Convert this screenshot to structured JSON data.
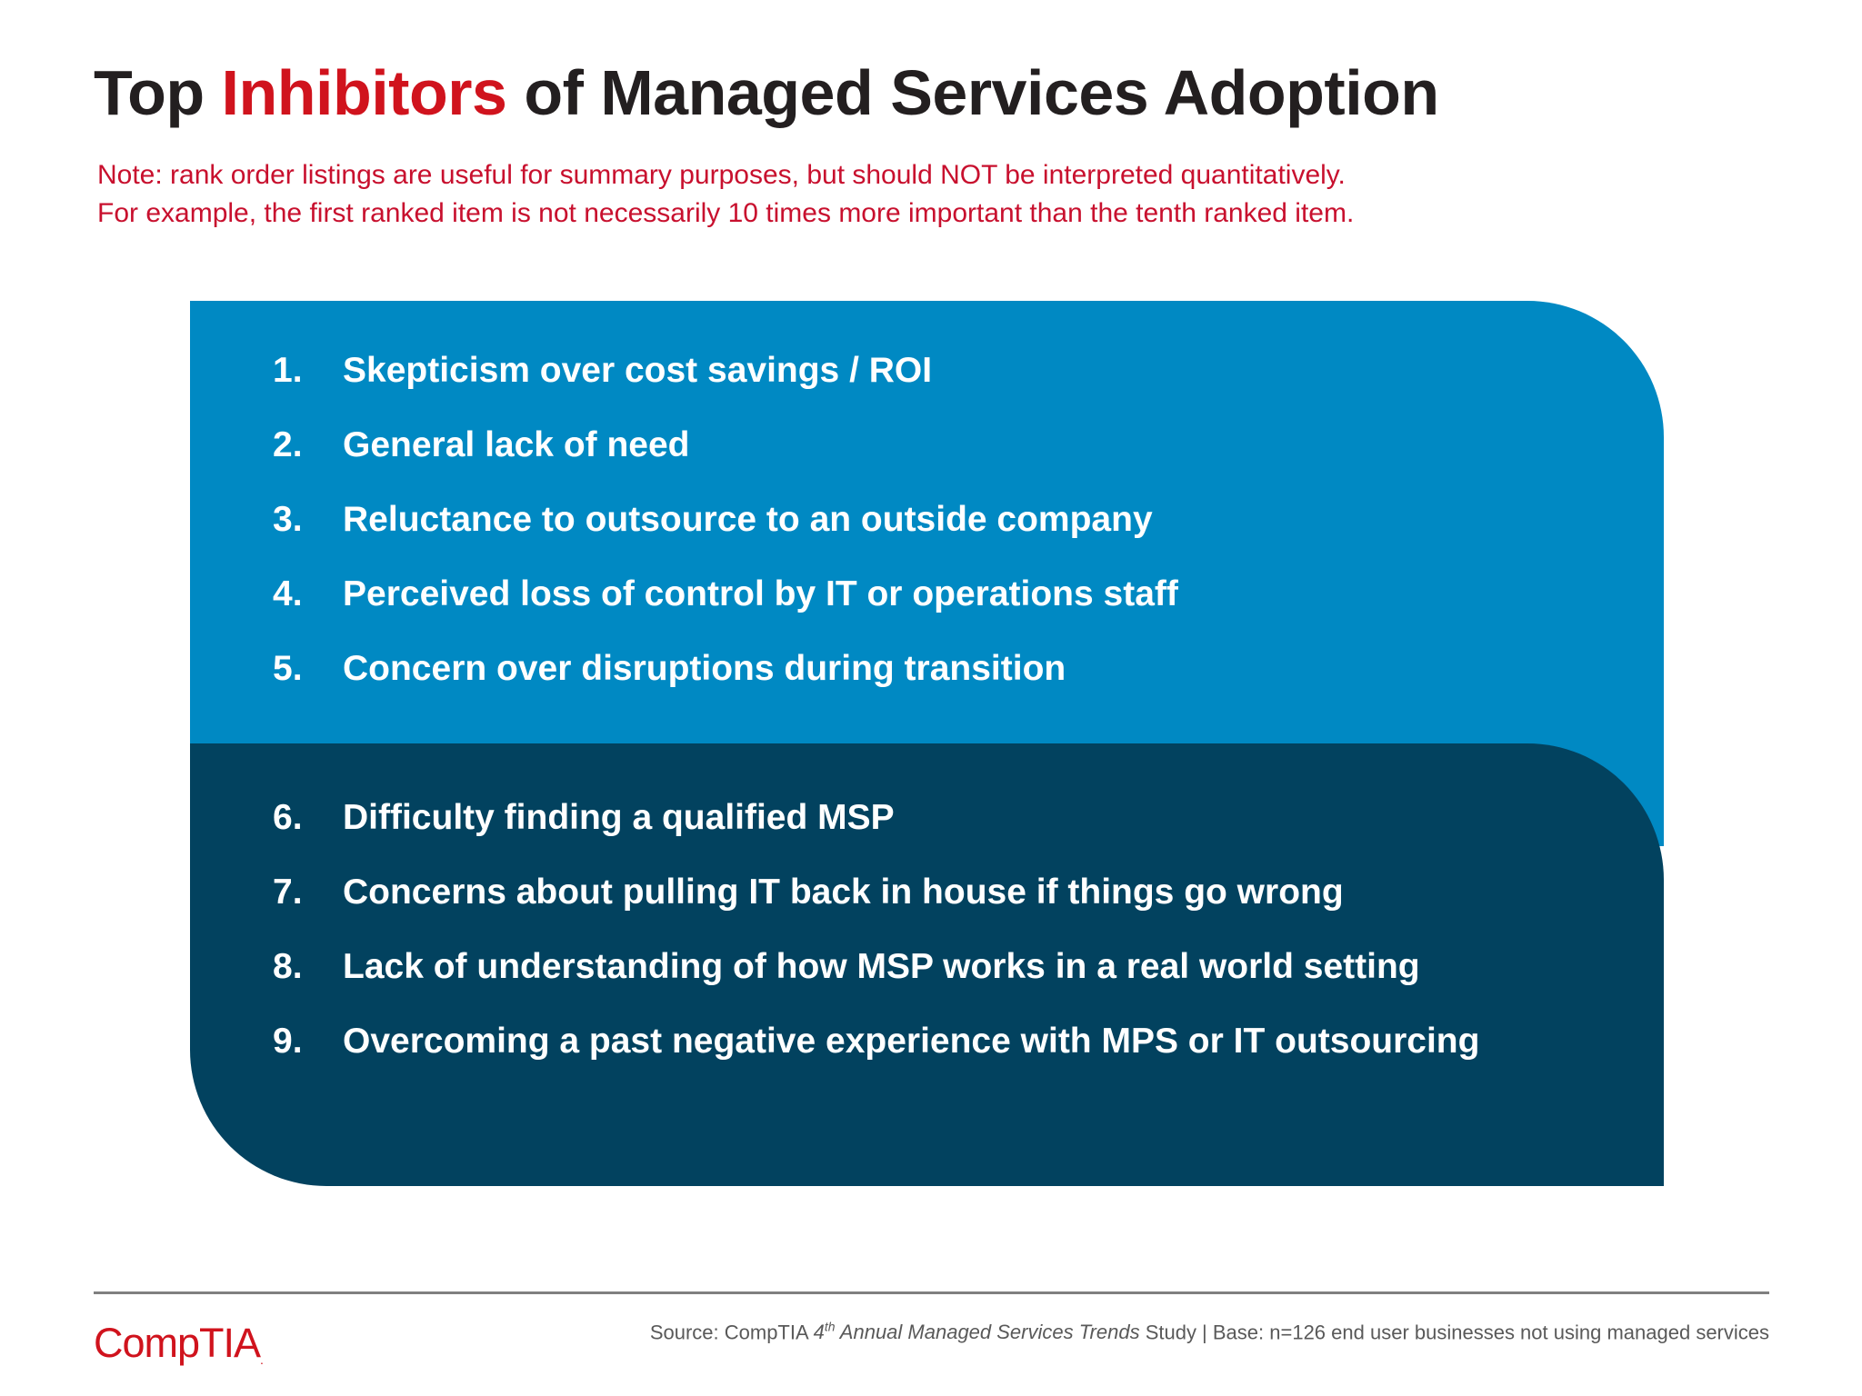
{
  "title": {
    "before": "Top ",
    "highlight": "Inhibitors",
    "after": " of Managed Services Adoption",
    "highlight_color": "#d0131d"
  },
  "note": {
    "line1": "Note: rank order listings are useful for summary purposes, but should NOT be interpreted quantitatively.",
    "line2": "For example, the first ranked item is not necessarily 10 times more important than the tenth ranked item.",
    "color": "#c8102e"
  },
  "panel": {
    "top_color": "#0089c3",
    "bottom_color": "#02425f",
    "top_items": [
      {
        "num": "1.",
        "text": "Skepticism over cost savings / ROI"
      },
      {
        "num": "2.",
        "text": "General lack of need"
      },
      {
        "num": "3.",
        "text": "Reluctance to outsource to an outside company"
      },
      {
        "num": "4.",
        "text": "Perceived loss of control by IT or operations staff"
      },
      {
        "num": "5.",
        "text": "Concern over disruptions during transition"
      }
    ],
    "bottom_items": [
      {
        "num": "6.",
        "text": "Difficulty finding a qualified MSP"
      },
      {
        "num": "7.",
        "text": "Concerns about pulling IT back in house if things go wrong"
      },
      {
        "num": "8.",
        "text": "Lack of understanding of how MSP works in a real world setting"
      },
      {
        "num": "9.",
        "text": "Overcoming a past negative experience with MPS or IT outsourcing"
      }
    ]
  },
  "footer": {
    "logo": "CompTIA",
    "logo_mark": ".",
    "source_prefix": "Source: CompTIA ",
    "source_ordinal": "4",
    "source_ordinal_suffix": "th",
    "source_study": " Annual Managed Services Trends",
    "source_suffix": " Study | Base: n=126 end user businesses not using managed services"
  }
}
